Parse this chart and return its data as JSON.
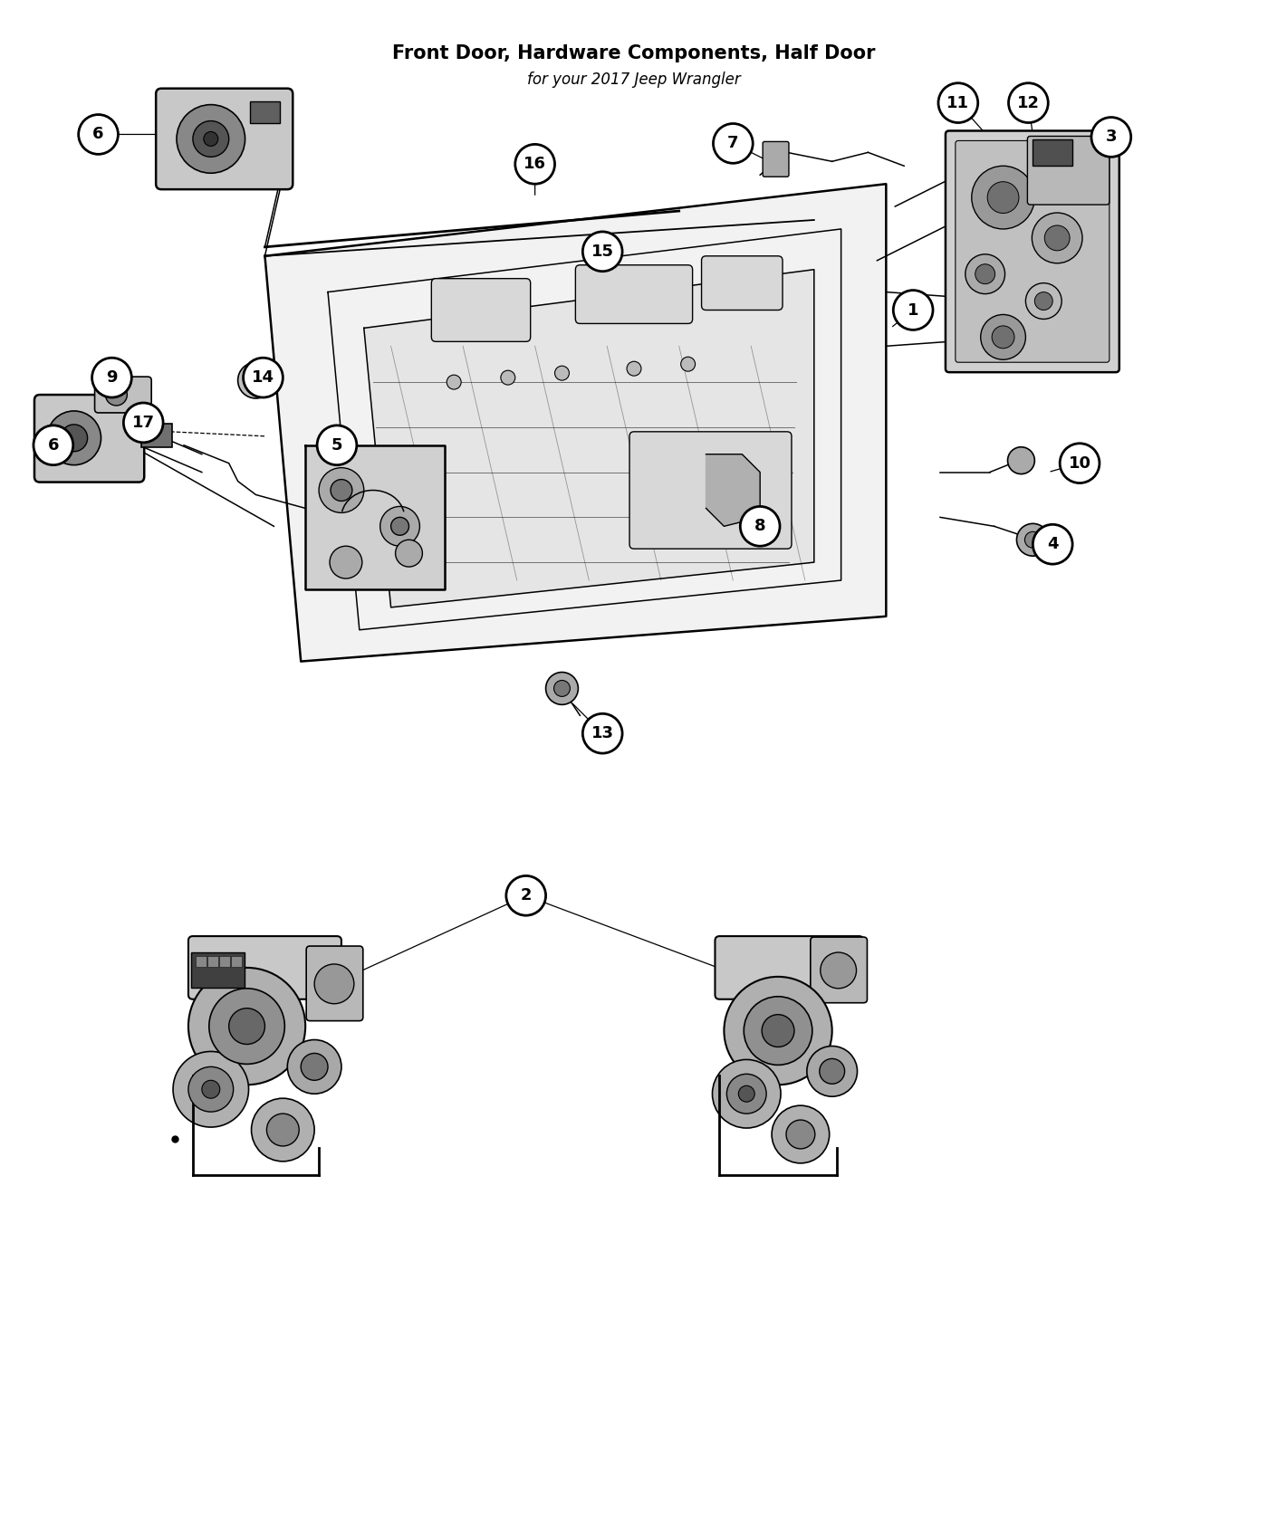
{
  "title": "Front Door, Hardware Components, Half Door",
  "subtitle": "for your 2017 Jeep Wrangler",
  "background_color": "#ffffff",
  "line_color": "#000000",
  "callout_bg": "#ffffff",
  "callout_border": "#000000",
  "callout_fontsize": 13,
  "title_fontsize": 15,
  "subtitle_fontsize": 12,
  "figsize": [
    14,
    17
  ],
  "dpi": 100
}
